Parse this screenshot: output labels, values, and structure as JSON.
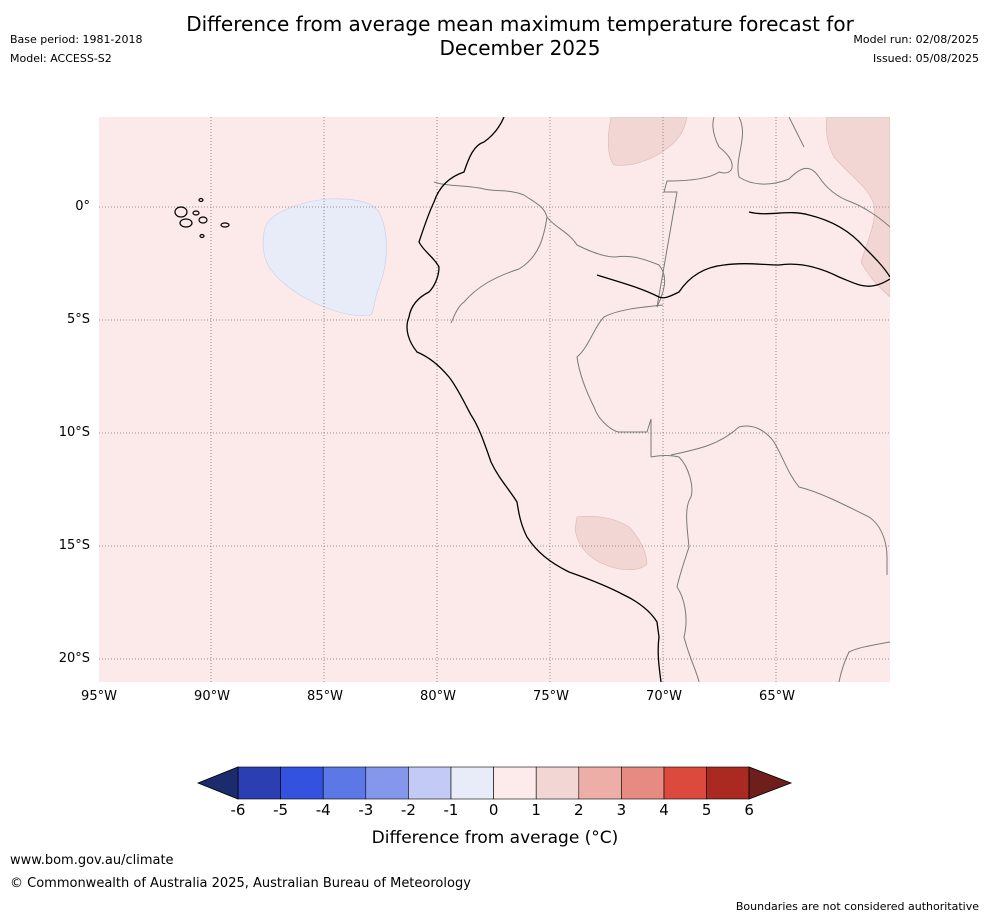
{
  "header": {
    "title_line1": "Difference from average mean maximum temperature forecast for",
    "title_line2": "December 2025",
    "base_period": "Base period: 1981-2018",
    "model": "Model: ACCESS-S2",
    "model_run": "Model run: 02/08/2025",
    "issued": "Issued: 05/08/2025"
  },
  "map": {
    "background_color": "#fbeae9",
    "lat_labels": [
      "0°",
      "5°S",
      "10°S",
      "15°S",
      "20°S"
    ],
    "lon_labels": [
      "95°W",
      "90°W",
      "85°W",
      "80°W",
      "75°W",
      "70°W",
      "65°W"
    ],
    "regions": [
      {
        "name": "cooler-anomaly-ocean",
        "category": "-1 to 0",
        "color": "#e8ecf9"
      },
      {
        "name": "warmer-anomaly-north",
        "category": "1 to 2",
        "color": "#f2d6d3"
      },
      {
        "name": "warmer-anomaly-northeast",
        "category": "1 to 2",
        "color": "#f2d6d3"
      },
      {
        "name": "warmer-anomaly-south",
        "category": "1 to 2",
        "color": "#f2d6d3"
      }
    ]
  },
  "colorbar": {
    "title": "Difference from average (°C)",
    "ticks": [
      "-6",
      "-5",
      "-4",
      "-3",
      "-2",
      "-1",
      "0",
      "1",
      "2",
      "3",
      "4",
      "5",
      "6"
    ],
    "low_extend_color": "#1c2a6e",
    "high_extend_color": "#6e1f1c",
    "colors": [
      "#2b3fb2",
      "#3352e0",
      "#5c77e6",
      "#8597ec",
      "#c2caf5",
      "#e8ecf9",
      "#fcebea",
      "#f2d6d3",
      "#eeaea8",
      "#e68a82",
      "#dc4a3e",
      "#aa2a22"
    ]
  },
  "footer": {
    "url": "www.bom.gov.au/climate",
    "copyright": "© Commonwealth of Australia 2025, Australian Bureau of Meteorology",
    "disclaimer": "Boundaries are not considered authoritative"
  }
}
